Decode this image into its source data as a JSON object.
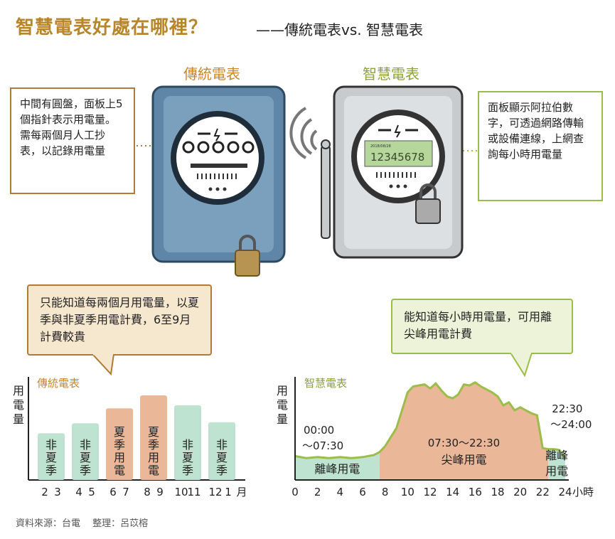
{
  "header": {
    "title": "智慧電表好處在哪裡？",
    "subtitle": "——傳統電表vs. 智慧電表"
  },
  "meters": {
    "traditional": {
      "label": "傳統電表",
      "callout": "中間有圓盤，面板上5個指針表示用電量。需每兩個月人工抄表，以記錄用電量"
    },
    "smart": {
      "label": "智慧電表",
      "display_value": "12345678",
      "display_small": "2018/08/28",
      "callout": "面板顯示阿拉伯數字，可透過網路傳輸或設備連線，上網查詢每小時用電量"
    }
  },
  "bubbles": {
    "traditional": "只能知道每兩個月用電量，以夏季與非夏季用電計費，6至9月計費較貴",
    "smart": "能知道每小時用電量，可用離尖峰用電計費"
  },
  "colors": {
    "gold": "#c9862b",
    "green": "#9bbd4a",
    "summer_bar": "#eab799",
    "nonsummer_bar": "#bfe3d1",
    "peak_fill": "#eab799",
    "offpeak_fill": "#bfe3d1",
    "meter_blue": "#5f86a6",
    "meter_gray": "#c7cbce"
  },
  "chart_data": [
    {
      "type": "bar",
      "title": "傳統電表",
      "ylabel": "用電量",
      "xlabel": "月",
      "x_ticks": [
        "2",
        "3",
        "4",
        "5",
        "6",
        "7",
        "8",
        "9",
        "10",
        "11",
        "12",
        "1"
      ],
      "categories": [
        "2 3",
        "4 5",
        "6 7",
        "8 9",
        "10 11",
        "12 1"
      ],
      "values": [
        47,
        57,
        72,
        85,
        75,
        58
      ],
      "bar_labels": [
        "非夏季",
        "非夏季",
        "夏季用電",
        "夏季用電",
        "非夏季",
        "非夏季"
      ],
      "bar_types": [
        "nonsummer",
        "nonsummer",
        "summer",
        "summer",
        "nonsummer",
        "nonsummer"
      ],
      "ylim": [
        0,
        100
      ]
    },
    {
      "type": "area",
      "title": "智慧電表",
      "ylabel": "用電量",
      "xlabel": "小時",
      "x_ticks": [
        0,
        2,
        4,
        6,
        8,
        10,
        12,
        14,
        16,
        18,
        20,
        22,
        24
      ],
      "x": [
        0,
        1,
        2,
        3,
        4,
        5,
        6,
        7,
        7.5,
        8,
        9,
        10,
        10.5,
        11,
        11.5,
        12,
        12.5,
        13,
        13.5,
        14,
        14.5,
        15,
        15.5,
        16,
        16.5,
        17,
        17.5,
        18,
        18.5,
        19,
        19.5,
        20,
        20.5,
        21,
        21.5,
        22,
        22.5,
        23,
        23.5,
        24
      ],
      "y": [
        24,
        22,
        23,
        22,
        23,
        22,
        23,
        25,
        28,
        34,
        52,
        88,
        94,
        95,
        96,
        92,
        97,
        90,
        84,
        82,
        86,
        96,
        95,
        98,
        94,
        91,
        88,
        84,
        75,
        78,
        70,
        73,
        70,
        67,
        65,
        32,
        31,
        31,
        30,
        22
      ],
      "regions": [
        {
          "label": "離峰用電",
          "range_label": "00:00 ～07:30",
          "from": 0,
          "to": 7.5,
          "kind": "offpeak"
        },
        {
          "label": "尖峰用電",
          "range_label": "07:30～22:30",
          "from": 7.5,
          "to": 22.5,
          "kind": "peak"
        },
        {
          "label": "離峰用電",
          "range_label": "22:30 ～24:00",
          "from": 22.5,
          "to": 24,
          "kind": "offpeak"
        }
      ],
      "xlim": [
        0,
        24
      ],
      "ylim": [
        0,
        100
      ]
    }
  ],
  "footer": {
    "source": "資料來源：台電　 整理：呂苡榕"
  }
}
